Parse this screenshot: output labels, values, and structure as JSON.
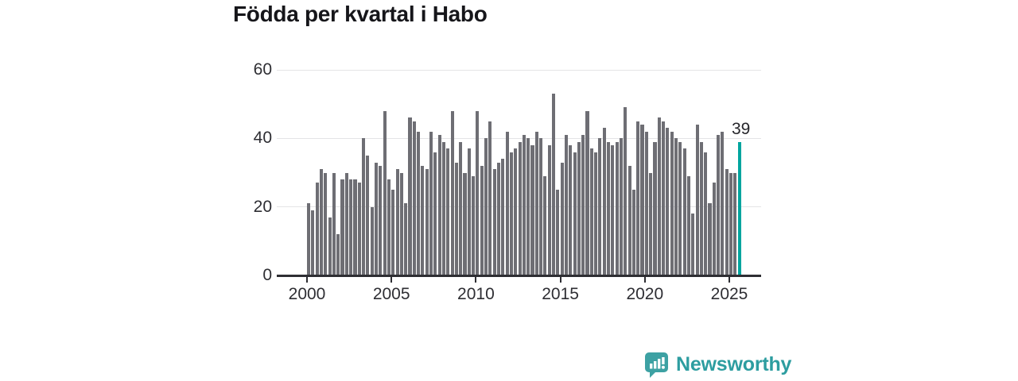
{
  "title": "Födda per kvartal i Habo",
  "colors": {
    "bar_gray": "#6e6e74",
    "bar_highlight_teal": "#00a59f",
    "gridline": "#e4e4e6",
    "axis": "#2e2e33",
    "text": "#2e2e33",
    "logo_teal": "#2d9da0"
  },
  "chart_data": {
    "type": "bar",
    "title": "Födda per kvartal i Habo",
    "x_start": "2000 Q1",
    "x_end": "2025 Q3",
    "x_tick_labels": [
      "2000",
      "2005",
      "2010",
      "2015",
      "2020",
      "2025"
    ],
    "y_ticks": [
      0,
      20,
      40,
      60
    ],
    "ylim": [
      0,
      62
    ],
    "grid": "horizontal",
    "legend": "none",
    "highlight_last_bar": true,
    "last_bar_label": "39",
    "values": [
      21,
      19,
      27,
      31,
      30,
      17,
      30,
      12,
      28,
      30,
      28,
      28,
      27,
      40,
      35,
      20,
      33,
      32,
      48,
      28,
      25,
      31,
      30,
      21,
      46,
      45,
      42,
      32,
      31,
      42,
      36,
      41,
      39,
      37,
      48,
      33,
      39,
      30,
      37,
      29,
      48,
      32,
      40,
      45,
      31,
      33,
      34,
      42,
      36,
      37,
      39,
      41,
      40,
      38,
      42,
      40,
      29,
      38,
      53,
      25,
      33,
      41,
      38,
      36,
      39,
      41,
      48,
      37,
      36,
      40,
      43,
      39,
      38,
      39,
      40,
      49,
      32,
      25,
      45,
      44,
      42,
      30,
      39,
      46,
      45,
      43,
      42,
      40,
      39,
      37,
      29,
      18,
      44,
      39,
      36,
      21,
      27,
      41,
      42,
      31,
      30,
      30,
      39
    ]
  },
  "logo": {
    "text": "Newsworthy",
    "icon": "newsworthy-speech-bubble-chart-icon"
  }
}
